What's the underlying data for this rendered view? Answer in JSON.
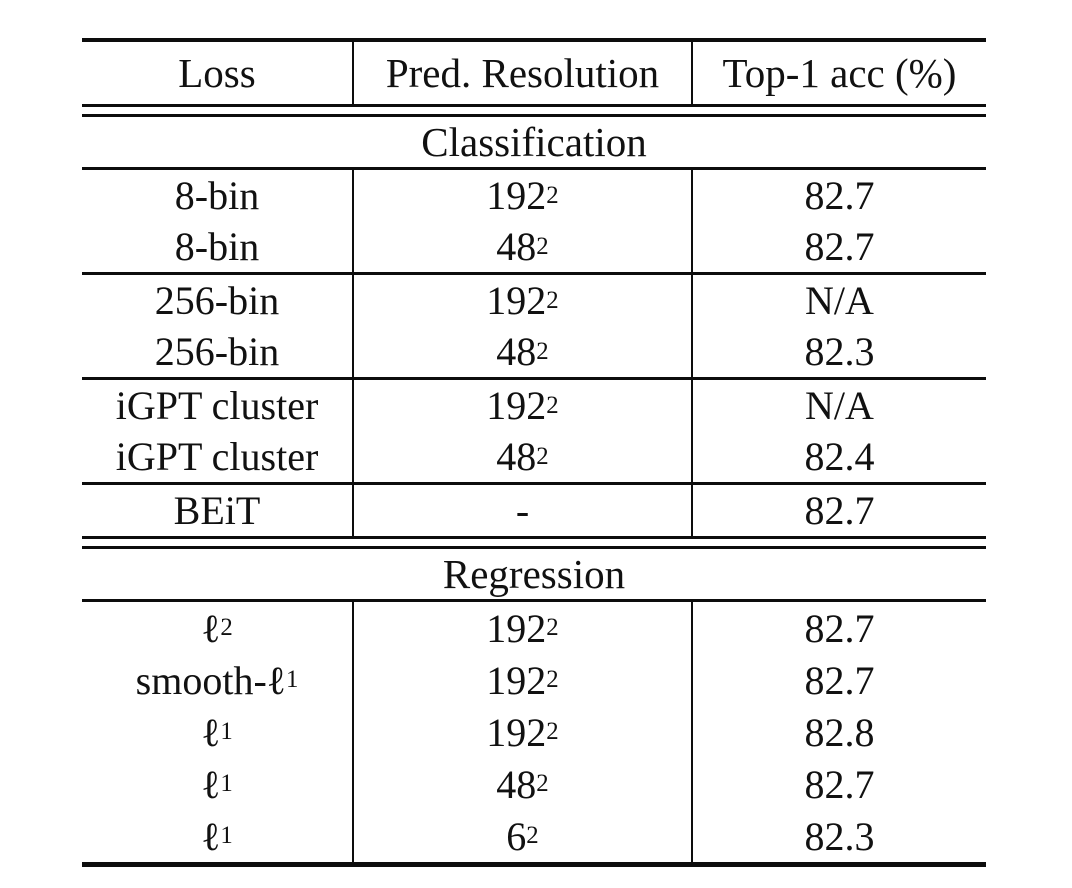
{
  "colors": {
    "background": "#ffffff",
    "text": "#111111",
    "rule": "#0d0d0d"
  },
  "table": {
    "columns": [
      "Loss",
      "Pred. Resolution",
      "Top-1 acc (%)"
    ],
    "sections": [
      {
        "title": "Classification",
        "groups": [
          {
            "rows": [
              {
                "loss": "8-bin",
                "res": "192^2",
                "acc": "82.7"
              },
              {
                "loss": "8-bin",
                "res": "48^2",
                "acc": "82.7"
              }
            ]
          },
          {
            "rows": [
              {
                "loss": "256-bin",
                "res": "192^2",
                "acc": "N/A"
              },
              {
                "loss": "256-bin",
                "res": "48^2",
                "acc": "82.3"
              }
            ]
          },
          {
            "rows": [
              {
                "loss": "iGPT cluster",
                "res": "192^2",
                "acc": "N/A"
              },
              {
                "loss": "iGPT cluster",
                "res": "48^2",
                "acc": "82.4"
              }
            ]
          },
          {
            "rows": [
              {
                "loss": "BEiT",
                "res": "-",
                "acc": "82.7"
              }
            ]
          }
        ]
      },
      {
        "title": "Regression",
        "groups": [
          {
            "rows": [
              {
                "loss": "ℓ_2",
                "res": "192^2",
                "acc": "82.7"
              },
              {
                "loss": "smooth-ℓ_1",
                "res": "192^2",
                "acc": "82.7"
              },
              {
                "loss": "ℓ_1",
                "res": "192^2",
                "acc": "82.8"
              },
              {
                "loss": "ℓ_1",
                "res": "48^2",
                "acc": "82.7"
              },
              {
                "loss": "ℓ_1",
                "res": "6^2",
                "acc": "82.3"
              }
            ]
          }
        ]
      }
    ]
  }
}
